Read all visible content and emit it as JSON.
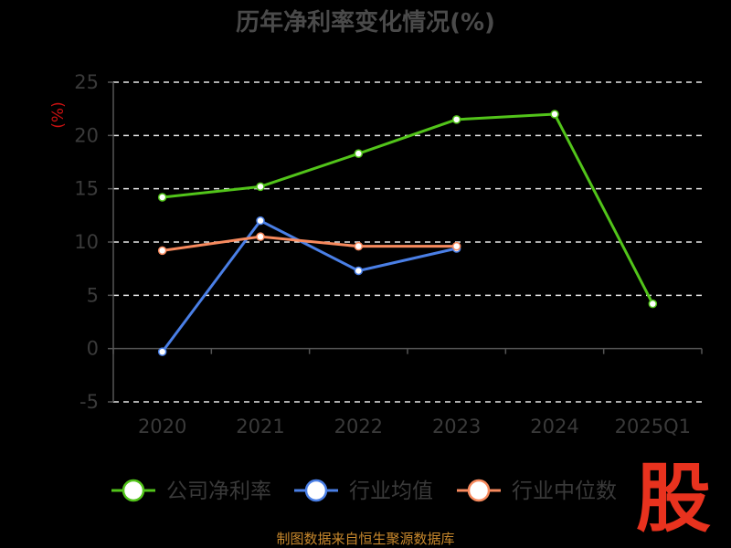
{
  "chart_data": {
    "type": "line",
    "title": "历年净利率变化情况(%)",
    "ylabel": "(%)",
    "xlabel": "",
    "categories": [
      "2020",
      "2021",
      "2022",
      "2023",
      "2024",
      "2025Q1"
    ],
    "ylim": [
      -5,
      25
    ],
    "yticks": [
      25,
      20,
      15,
      10,
      5,
      0,
      -5
    ],
    "grid": true,
    "legend_position": "bottom",
    "series": [
      {
        "name": "公司净利率",
        "color": "#52c41a",
        "values": [
          14.2,
          15.2,
          18.3,
          21.5,
          22.0,
          4.2
        ]
      },
      {
        "name": "行业均值",
        "color": "#4a7fe6",
        "values": [
          -0.3,
          12.0,
          7.3,
          9.4,
          null,
          null
        ]
      },
      {
        "name": "行业中位数",
        "color": "#f78a5e",
        "values": [
          9.2,
          10.5,
          9.6,
          9.6,
          null,
          null
        ]
      }
    ]
  },
  "source": "制图数据来自恒生聚源数据库",
  "logo": "股"
}
